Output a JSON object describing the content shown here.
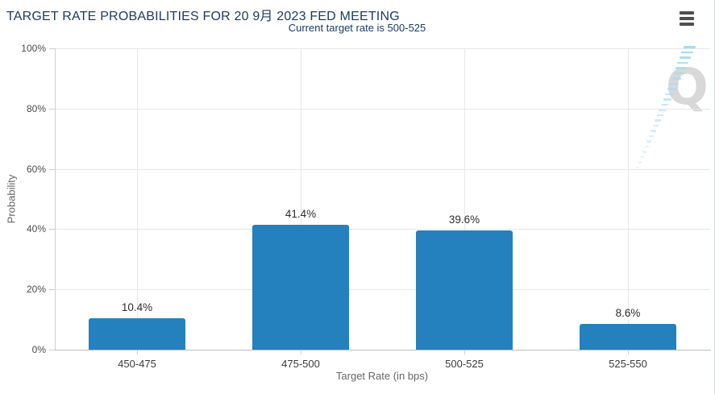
{
  "chart": {
    "watermark_letter": "Q"
  },
  "chart_data": {
    "type": "bar",
    "title": "TARGET RATE PROBABILITIES FOR 20 9月 2023 FED MEETING",
    "subtitle": "Current target rate is 500-525",
    "categories": [
      "450-475",
      "475-500",
      "500-525",
      "525-550"
    ],
    "values": [
      10.4,
      41.4,
      39.6,
      8.6
    ],
    "value_labels": [
      "10.4%",
      "41.4%",
      "39.6%",
      "8.6%"
    ],
    "xlabel": "Target Rate (in bps)",
    "ylabel": "Probability",
    "ylim": [
      0,
      100
    ],
    "ytick_step": 20,
    "ytick_labels": [
      "0%",
      "20%",
      "40%",
      "60%",
      "80%",
      "100%"
    ],
    "grid": true,
    "legend": "none",
    "bar_color": "#2581bd"
  },
  "colors": {
    "background": "#ffffff",
    "title": "#1c3b66",
    "subtitle": "#1c3b66",
    "bar": "#2581bd",
    "gridline": "#e7e7e7",
    "axis_line": "#cfcfcf",
    "x_axis_line": "#bfbfbf",
    "tick_label": "#4c4c4c",
    "category_label": "#3a3a3a",
    "value_label": "#2d2d2d",
    "axis_title": "#666666",
    "menu_icon": "#4f4f4f",
    "watermark_q": "#d8d8d8",
    "watermark_dash": "#a9daf2",
    "panel_border": "#d9dee3"
  }
}
